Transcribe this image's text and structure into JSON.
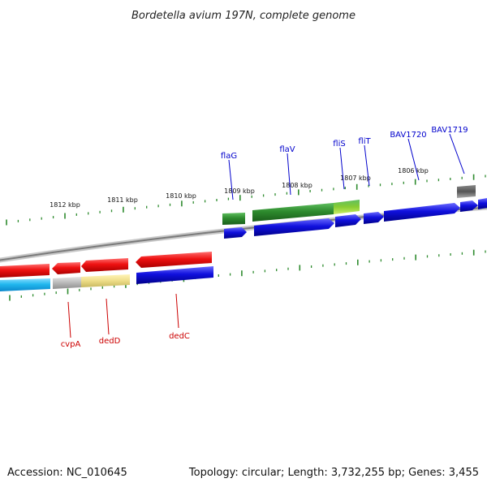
{
  "title": "Bordetella avium 197N, complete genome",
  "footer": {
    "accession": "Accession: NC_010645",
    "summary": "Topology: circular; Length: 3,732,255 bp; Genes: 3,455"
  },
  "colors": {
    "tick": "#2e8b2e",
    "backbone": "#8a8a8a",
    "forward_label": "#0000cc",
    "reverse_label": "#cc0000",
    "red": "#ee1111",
    "blue": "#1010dd",
    "green": "#2e8b2e",
    "lightgreen": "#99cc33",
    "cyan": "#22b8ee",
    "gray": "#b8b8b8",
    "yellow": "#eedd88",
    "darkgray": "#555555"
  },
  "kbp_labels": [
    "1812 kbp",
    "1811 kbp",
    "1810 kbp",
    "1809 kbp",
    "1808 kbp",
    "1807 kbp",
    "1806 kbp"
  ],
  "forward_genes": [
    "flaG",
    "flaV",
    "fliS",
    "fliT",
    "BAV1720",
    "BAV1719"
  ],
  "reverse_genes": [
    "cvpA",
    "dedD",
    "dedC"
  ]
}
